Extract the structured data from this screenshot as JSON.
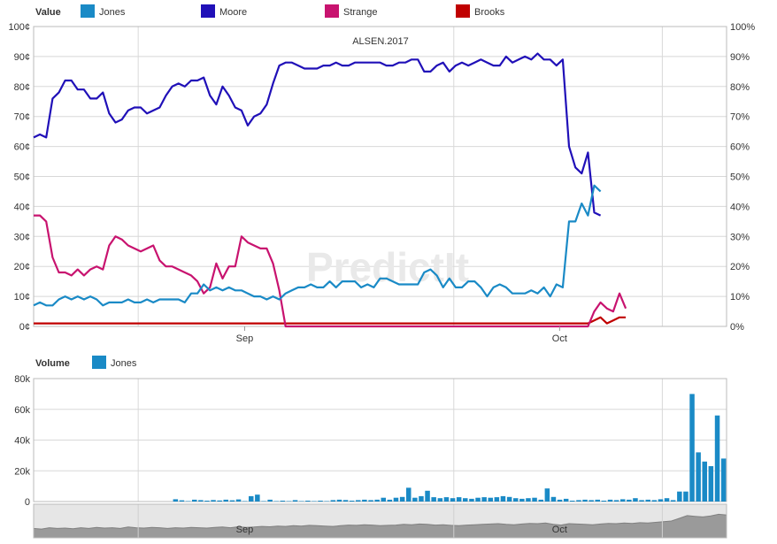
{
  "chart_data": [
    {
      "type": "line",
      "title": "ALSEN.2017",
      "legend_title": "Value",
      "legend_position": "top-left",
      "grid": true,
      "ylim": [
        0,
        100
      ],
      "y_ticks_left": [
        "0¢",
        "10¢",
        "20¢",
        "30¢",
        "40¢",
        "50¢",
        "60¢",
        "70¢",
        "80¢",
        "90¢",
        "100¢"
      ],
      "y_ticks_right": [
        "0%",
        "10%",
        "20%",
        "30%",
        "40%",
        "50%",
        "60%",
        "70%",
        "80%",
        "90%",
        "100%"
      ],
      "x_tick_labels": [
        "Sep",
        "Oct"
      ],
      "x_tick_positions": [
        33.5,
        83.5
      ],
      "x_range": [
        0,
        110
      ],
      "colors": {
        "Jones": "#1a8ac6",
        "Moore": "#2010b8",
        "Strange": "#c8136f",
        "Brooks": "#c00000"
      },
      "series": [
        {
          "name": "Moore",
          "values": [
            63,
            64,
            63,
            76,
            78,
            82,
            82,
            79,
            79,
            76,
            76,
            78,
            71,
            68,
            69,
            72,
            73,
            73,
            71,
            72,
            73,
            77,
            80,
            81,
            80,
            82,
            82,
            83,
            77,
            74,
            80,
            77,
            73,
            72,
            67,
            70,
            71,
            74,
            81,
            87,
            88,
            88,
            87,
            86,
            86,
            86,
            87,
            87,
            88,
            87,
            87,
            88,
            88,
            88,
            88,
            88,
            87,
            87,
            88,
            88,
            89,
            89,
            85,
            85,
            87,
            88,
            85,
            87,
            88,
            87,
            88,
            89,
            88,
            87,
            87,
            90,
            88,
            89,
            90,
            89,
            91,
            89,
            89,
            87,
            89,
            60,
            53,
            51,
            58,
            38,
            37
          ]
        },
        {
          "name": "Jones",
          "values": [
            7,
            8,
            7,
            7,
            9,
            10,
            9,
            10,
            9,
            10,
            9,
            7,
            8,
            8,
            8,
            9,
            8,
            8,
            9,
            8,
            9,
            9,
            9,
            9,
            8,
            11,
            11,
            14,
            12,
            13,
            12,
            13,
            12,
            12,
            11,
            10,
            10,
            9,
            10,
            9,
            11,
            12,
            13,
            13,
            14,
            13,
            13,
            15,
            13,
            15,
            15,
            15,
            13,
            14,
            13,
            16,
            16,
            15,
            14,
            14,
            14,
            14,
            18,
            19,
            17,
            13,
            16,
            13,
            13,
            15,
            15,
            13,
            10,
            13,
            14,
            13,
            11,
            11,
            11,
            12,
            11,
            13,
            10,
            14,
            13,
            35,
            35,
            41,
            37,
            47,
            45
          ]
        },
        {
          "name": "Strange",
          "points": [
            [
              0,
              37
            ],
            [
              1,
              37
            ],
            [
              2,
              35
            ],
            [
              3,
              23
            ],
            [
              4,
              18
            ],
            [
              5,
              18
            ],
            [
              6,
              17
            ],
            [
              7,
              19
            ],
            [
              8,
              17
            ],
            [
              9,
              19
            ],
            [
              10,
              20
            ],
            [
              11,
              19
            ],
            [
              12,
              27
            ],
            [
              13,
              30
            ],
            [
              14,
              29
            ],
            [
              15,
              27
            ],
            [
              16,
              26
            ],
            [
              17,
              25
            ],
            [
              18,
              26
            ],
            [
              19,
              27
            ],
            [
              20,
              22
            ],
            [
              21,
              20
            ],
            [
              22,
              20
            ],
            [
              23,
              19
            ],
            [
              24,
              18
            ],
            [
              25,
              17
            ],
            [
              26,
              15
            ],
            [
              27,
              11
            ],
            [
              28,
              13
            ],
            [
              29,
              21
            ],
            [
              30,
              16
            ],
            [
              31,
              20
            ],
            [
              32,
              20
            ],
            [
              33,
              30
            ],
            [
              34,
              28
            ],
            [
              35,
              27
            ],
            [
              36,
              26
            ],
            [
              37,
              26
            ],
            [
              38,
              21
            ],
            [
              39,
              12
            ],
            [
              40,
              0
            ],
            [
              88,
              0
            ],
            [
              89,
              5
            ],
            [
              90,
              8
            ],
            [
              91,
              6
            ],
            [
              92,
              5
            ],
            [
              93,
              11
            ],
            [
              94,
              6
            ]
          ]
        },
        {
          "name": "Brooks",
          "points": [
            [
              0,
              1
            ],
            [
              88,
              1
            ],
            [
              89,
              2
            ],
            [
              90,
              3
            ],
            [
              91,
              1
            ],
            [
              92,
              2
            ],
            [
              93,
              3
            ],
            [
              94,
              3
            ]
          ]
        }
      ]
    },
    {
      "type": "bar",
      "legend_title": "Volume",
      "series_name": "Jones",
      "color": "#1a8ac6",
      "ylim": [
        0,
        80000
      ],
      "y_ticks": [
        "0",
        "20k",
        "40k",
        "60k",
        "80k"
      ],
      "values": [
        1500,
        800,
        300,
        1200,
        900,
        600,
        1000,
        700,
        1200,
        800,
        1400,
        300,
        3500,
        4500,
        300,
        1200,
        300,
        600,
        300,
        900,
        300,
        600,
        300,
        600,
        300,
        900,
        1200,
        1000,
        600,
        900,
        1200,
        900,
        1200,
        2500,
        1200,
        2500,
        3000,
        9000,
        2500,
        3500,
        7000,
        2800,
        2200,
        2800,
        2200,
        2800,
        2200,
        1800,
        2500,
        2800,
        2500,
        2800,
        3500,
        3000,
        2200,
        1800,
        2200,
        2500,
        1200,
        8500,
        3000,
        1200,
        1800,
        600,
        900,
        1200,
        900,
        1200,
        600,
        1200,
        900,
        1500,
        1200,
        2200,
        900,
        1200,
        900,
        1500,
        2200,
        900,
        6500,
        6500,
        70000,
        32000,
        26000,
        23000,
        56000,
        28000
      ]
    }
  ],
  "navigator": {
    "month_labels": [
      "Sep",
      "Oct"
    ],
    "volume_profile": [
      28,
      26,
      30,
      28,
      29,
      27,
      30,
      28,
      31,
      29,
      30,
      28,
      32,
      30,
      29,
      31,
      30,
      28,
      30,
      29,
      31,
      30,
      29,
      31,
      32,
      30,
      33,
      31,
      32,
      34,
      33,
      35,
      34,
      36,
      35,
      37,
      36,
      35,
      34,
      36,
      38,
      37,
      39,
      38,
      36,
      37,
      38,
      40,
      39,
      41,
      40,
      38,
      39,
      37,
      36,
      38,
      39,
      40,
      41,
      42,
      40,
      39,
      41,
      43,
      42,
      44,
      40,
      38,
      42,
      41,
      40,
      39,
      41,
      43,
      42,
      44,
      43,
      45,
      44,
      46,
      48,
      50,
      58,
      66,
      64,
      62,
      65,
      70,
      68
    ]
  },
  "watermark": "PredictIt"
}
